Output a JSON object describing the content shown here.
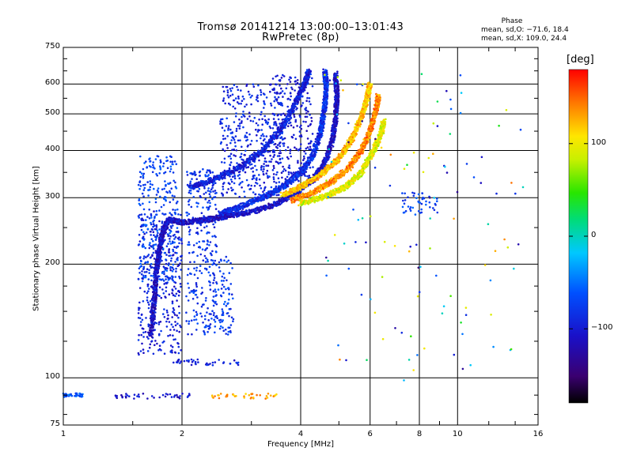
{
  "title": {
    "line1": "Tromsø 20141214 13:00:00–13:01:43",
    "line2": "RwPretec (8p)"
  },
  "phase_legend": {
    "heading": "Phase",
    "line1": "mean, sd,O: −71.6, 18.4",
    "line2": "mean, sd,X: 109.0, 24.4"
  },
  "colorbar": {
    "unit": "[deg]",
    "ticks": [
      "100",
      "0",
      "−100"
    ],
    "tick_values": [
      100,
      0,
      -100
    ],
    "range": [
      -180,
      180
    ]
  },
  "chart_data": {
    "type": "scatter",
    "title": "Tromsø 20141214 13:00:00–13:01:43",
    "subtitle": "RwPretec (8p)",
    "xlabel": "Frequency [MHz]",
    "ylabel": "Stationary phase Virtual Height [km]",
    "x_scale": "log",
    "y_scale": "log",
    "xlim": [
      1,
      16
    ],
    "ylim": [
      75,
      750
    ],
    "x_ticks": [
      1,
      2,
      4,
      6,
      8,
      10,
      16
    ],
    "x_tick_labels": [
      "1",
      "2",
      "4",
      "6",
      "8",
      "10",
      "16"
    ],
    "y_ticks": [
      75,
      100,
      200,
      300,
      400,
      500,
      600,
      750
    ],
    "y_tick_labels": [
      "75",
      "100",
      "200",
      "300",
      "400",
      "500",
      "600",
      "750"
    ],
    "grid": true,
    "color_variable": "Phase [deg]",
    "colormap": "rainbow",
    "traces": [
      {
        "name": "",
        "points": [
          [
            1.67,
            130
          ],
          [
            1.7,
            160
          ],
          [
            1.72,
            190
          ],
          [
            1.75,
            215
          ],
          [
            1.78,
            240
          ],
          [
            1.85,
            262
          ],
          [
            2.0,
            258
          ],
          [
            2.3,
            262
          ],
          [
            2.6,
            268
          ],
          [
            3.0,
            275
          ],
          [
            3.5,
            290
          ],
          [
            3.9,
            310
          ],
          [
            4.3,
            335
          ],
          [
            4.6,
            370
          ],
          [
            4.8,
            420
          ],
          [
            4.9,
            480
          ],
          [
            4.95,
            560
          ],
          [
            4.9,
            640
          ]
        ],
        "phase": -110
      },
      {
        "name": "",
        "points": [
          [
            2.5,
            272
          ],
          [
            2.8,
            283
          ],
          [
            3.2,
            300
          ],
          [
            3.6,
            320
          ],
          [
            4.0,
            350
          ],
          [
            4.3,
            390
          ],
          [
            4.5,
            450
          ],
          [
            4.6,
            520
          ],
          [
            4.65,
            590
          ],
          [
            4.6,
            650
          ]
        ],
        "phase": -85
      },
      {
        "name": "",
        "points": [
          [
            2.1,
            320
          ],
          [
            2.4,
            335
          ],
          [
            2.8,
            360
          ],
          [
            3.2,
            400
          ],
          [
            3.6,
            460
          ],
          [
            3.9,
            540
          ],
          [
            4.1,
            600
          ],
          [
            4.2,
            650
          ]
        ],
        "phase": -95
      },
      {
        "name": "",
        "points": [
          [
            3.6,
            305
          ],
          [
            4.0,
            320
          ],
          [
            4.5,
            345
          ],
          [
            5.0,
            380
          ],
          [
            5.4,
            430
          ],
          [
            5.7,
            490
          ],
          [
            5.9,
            550
          ],
          [
            6.0,
            600
          ]
        ],
        "phase": 120
      },
      {
        "name": "",
        "points": [
          [
            3.8,
            295
          ],
          [
            4.3,
            310
          ],
          [
            4.8,
            330
          ],
          [
            5.3,
            360
          ],
          [
            5.7,
            400
          ],
          [
            6.0,
            450
          ],
          [
            6.2,
            510
          ],
          [
            6.3,
            560
          ]
        ],
        "phase": 140
      },
      {
        "name": "",
        "points": [
          [
            4.0,
            290
          ],
          [
            4.6,
            302
          ],
          [
            5.2,
            320
          ],
          [
            5.7,
            350
          ],
          [
            6.1,
            395
          ],
          [
            6.4,
            445
          ],
          [
            6.5,
            480
          ]
        ],
        "phase": 95
      }
    ],
    "clusters": [
      {
        "x": [
          1.55,
          2.0
        ],
        "y": [
          115,
          280
        ],
        "phase": -95
      },
      {
        "x": [
          1.55,
          1.95
        ],
        "y": [
          180,
          390
        ],
        "phase": -70
      },
      {
        "x": [
          2.05,
          2.45
        ],
        "y": [
          130,
          360
        ],
        "phase": -80
      },
      {
        "x": [
          2.4,
          2.7
        ],
        "y": [
          130,
          210
        ],
        "phase": -75
      },
      {
        "x": [
          2.5,
          3.6
        ],
        "y": [
          300,
          600
        ],
        "phase": -90
      },
      {
        "x": [
          3.4,
          4.3
        ],
        "y": [
          330,
          640
        ],
        "phase": -100
      },
      {
        "x": [
          1.35,
          2.1
        ],
        "y": [
          88,
          91
        ],
        "phase": -105
      },
      {
        "x": [
          2.35,
          3.5
        ],
        "y": [
          88,
          91
        ],
        "phase": 130
      },
      {
        "x": [
          1.0,
          1.12
        ],
        "y": [
          89,
          91
        ],
        "phase": -60
      },
      {
        "x": [
          1.9,
          2.8
        ],
        "y": [
          108,
          112
        ],
        "phase": -95
      },
      {
        "x": [
          7.2,
          8.9
        ],
        "y": [
          270,
          310
        ],
        "phase": -70
      }
    ]
  }
}
